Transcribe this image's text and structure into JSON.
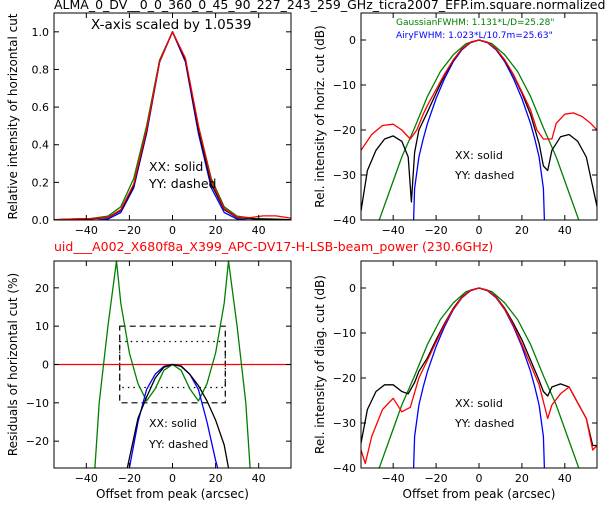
{
  "figure": {
    "top_title": "ALMA_0_DV__0_0_360_0_45_90_227_243_259_GHz_ticra2007_EFP.im.square.normalized",
    "mid_title": "uid___A002_X680f8a_X399_APC-DV17-H-LSB-beam_power (230.6GHz)",
    "x_scale_note": "X-axis scaled by 1.0539",
    "fwhm_gaussian": "GaussianFWHM: 1.131*L/D=25.28\"",
    "fwhm_airy": "AiryFWHM: 1.023*L/10.7m=25.63\"",
    "legend_xx": "XX: solid",
    "legend_yy": "YY: dashed"
  },
  "colors": {
    "black": "#000000",
    "red": "#ff0000",
    "blue": "#0000ff",
    "green": "#008000"
  },
  "chart_data": [
    {
      "id": "tl",
      "type": "line",
      "ylabel": "Relative intensity of horizontal cut",
      "xlabel": "",
      "xlim": [
        -55,
        55
      ],
      "ylim": [
        0,
        1.1
      ],
      "xticks": [
        -40,
        -20,
        0,
        20,
        40
      ],
      "yticks": [
        0.0,
        0.2,
        0.4,
        0.6,
        0.8,
        1.0
      ],
      "ytick_labels": [
        "0.0",
        "0.2",
        "0.4",
        "0.6",
        "0.8",
        "1.0"
      ],
      "series": [
        {
          "color": "green",
          "x": [
            -55,
            -45,
            -38,
            -30,
            -24,
            -18,
            -12,
            -6,
            0,
            6,
            12,
            18,
            24,
            30,
            38,
            45,
            55
          ],
          "y": [
            0.002,
            0.006,
            0.008,
            0.02,
            0.07,
            0.22,
            0.5,
            0.85,
            1.0,
            0.85,
            0.5,
            0.22,
            0.07,
            0.02,
            0.008,
            0.006,
            0.002
          ]
        },
        {
          "color": "blue",
          "x": [
            -35,
            -30,
            -24,
            -18,
            -12,
            -6,
            0,
            6,
            12,
            18,
            24,
            30,
            35
          ],
          "y": [
            0.0,
            0.005,
            0.04,
            0.17,
            0.46,
            0.84,
            1.0,
            0.84,
            0.46,
            0.17,
            0.04,
            0.005,
            0.0
          ]
        },
        {
          "color": "black",
          "x": [
            -55,
            -45,
            -38,
            -30,
            -24,
            -18,
            -12,
            -6,
            0,
            6,
            12,
            18,
            24,
            30,
            38,
            45,
            55
          ],
          "y": [
            0.001,
            0.005,
            0.006,
            0.012,
            0.05,
            0.18,
            0.47,
            0.84,
            1.0,
            0.85,
            0.48,
            0.19,
            0.055,
            0.012,
            0.006,
            0.005,
            0.001
          ]
        },
        {
          "color": "red",
          "x": [
            -55,
            -45,
            -38,
            -30,
            -24,
            -18,
            -12,
            -6,
            0,
            6,
            12,
            18,
            24,
            30,
            36,
            42,
            48,
            55
          ],
          "y": [
            0.001,
            0.006,
            0.008,
            0.014,
            0.055,
            0.19,
            0.48,
            0.84,
            1.0,
            0.86,
            0.5,
            0.21,
            0.06,
            0.015,
            0.012,
            0.022,
            0.022,
            0.01
          ]
        }
      ]
    },
    {
      "id": "tr",
      "type": "line",
      "ylabel": "Rel. intensity of horiz. cut (dB)",
      "xlabel": "",
      "xlim": [
        -55,
        55
      ],
      "ylim": [
        -40,
        6
      ],
      "xticks": [
        -40,
        -20,
        0,
        20,
        40
      ],
      "yticks": [
        -40,
        -30,
        -20,
        -10,
        0
      ],
      "ytick_labels": [
        "−40",
        "−30",
        "−20",
        "−10",
        "0"
      ],
      "series": [
        {
          "color": "green",
          "x": [
            -55,
            -48,
            -42,
            -36,
            -30,
            -24,
            -18,
            -12,
            -6,
            0,
            6,
            12,
            18,
            24,
            30,
            36,
            42,
            48,
            55
          ],
          "y": [
            -50,
            -42,
            -34,
            -26,
            -19.5,
            -12.5,
            -7,
            -3.3,
            -0.8,
            0,
            -0.8,
            -3.3,
            -7,
            -12.5,
            -19.5,
            -26,
            -34,
            -42,
            -50
          ]
        },
        {
          "color": "blue",
          "x": [
            -30.5,
            -30,
            -28,
            -26,
            -24,
            -20,
            -16,
            -12,
            -8,
            -4,
            0,
            4,
            8,
            12,
            16,
            20,
            24,
            26,
            28,
            30,
            30.5
          ],
          "y": [
            -40,
            -33,
            -26,
            -22,
            -18.5,
            -13,
            -8.5,
            -4.8,
            -2.2,
            -0.6,
            0,
            -0.6,
            -2.2,
            -4.8,
            -8.5,
            -13,
            -18.5,
            -22,
            -26,
            -33,
            -40
          ]
        },
        {
          "color": "black",
          "x": [
            -55,
            -52,
            -48,
            -44,
            -40,
            -36,
            -33,
            -31.5,
            -30,
            -28,
            -24,
            -20,
            -16,
            -12,
            -8,
            -4,
            0,
            4,
            8,
            12,
            16,
            20,
            24,
            28,
            30,
            32,
            34,
            38,
            42,
            46,
            50,
            55
          ],
          "y": [
            -38,
            -29,
            -24.5,
            -22,
            -21.3,
            -22.5,
            -26,
            -36,
            -25,
            -20,
            -16,
            -11.8,
            -7.8,
            -4.5,
            -2,
            -0.5,
            0,
            -0.5,
            -2,
            -4.5,
            -7.8,
            -11.8,
            -16.5,
            -23,
            -28,
            -29,
            -24.5,
            -21.5,
            -21,
            -22.5,
            -26,
            -37
          ]
        },
        {
          "color": "red",
          "x": [
            -55,
            -50,
            -45,
            -40,
            -36,
            -32,
            -29,
            -26,
            -24,
            -20,
            -16,
            -12,
            -8,
            -4,
            0,
            4,
            8,
            12,
            16,
            20,
            24,
            27,
            30,
            32,
            34,
            36,
            40,
            44,
            48,
            52,
            55
          ],
          "y": [
            -24.5,
            -21,
            -19,
            -18.7,
            -20,
            -22,
            -20,
            -16.5,
            -14.5,
            -11,
            -7.5,
            -4.4,
            -2,
            -0.5,
            0,
            -0.5,
            -2,
            -4.4,
            -7.6,
            -11.5,
            -15.5,
            -20,
            -22,
            -22,
            -22,
            -18.5,
            -16.5,
            -16.2,
            -17,
            -18.5,
            -20
          ]
        }
      ]
    },
    {
      "id": "bl",
      "type": "line",
      "ylabel": "Residuals of horizontal cut (%)",
      "xlabel": "Offset from peak (arcsec)",
      "xlim": [
        -55,
        55
      ],
      "ylim": [
        -27,
        27
      ],
      "xticks": [
        -40,
        -20,
        0,
        20,
        40
      ],
      "yticks": [
        -20,
        -10,
        0,
        10,
        20
      ],
      "ytick_labels": [
        "−20",
        "−10",
        "0",
        "10",
        "20"
      ],
      "series": [
        {
          "color": "red",
          "x": [
            -55,
            55
          ],
          "y": [
            0,
            0
          ]
        },
        {
          "color": "green",
          "x": [
            -36,
            -34,
            -30,
            -26,
            -24,
            -20,
            -16,
            -12,
            -8,
            -4,
            0,
            4,
            8,
            12,
            16,
            20,
            24,
            26,
            30,
            34,
            36
          ],
          "y": [
            -27,
            -10,
            10,
            27,
            16,
            3,
            -5,
            -9.5,
            -6.3,
            -1.5,
            0,
            -1.5,
            -6.3,
            -9.5,
            -5,
            3,
            16,
            27,
            10,
            -10,
            -27
          ]
        },
        {
          "color": "blue",
          "x": [
            -20,
            -16,
            -12,
            -8,
            -4,
            0,
            4,
            8,
            12,
            16,
            20,
            21
          ],
          "y": [
            -27,
            -15,
            -6.5,
            -2.5,
            -0.5,
            0,
            -0.5,
            -2.5,
            -6.5,
            -15,
            -25,
            -27
          ]
        },
        {
          "color": "black",
          "x": [
            -21,
            -16,
            -12,
            -8,
            -4,
            0,
            4,
            8,
            12,
            16,
            20,
            24,
            26
          ],
          "y": [
            -27,
            -14,
            -8.5,
            -3.5,
            -0.7,
            0,
            -0.4,
            -2.5,
            -5.5,
            -9.5,
            -14.5,
            -21,
            -27
          ]
        }
      ],
      "rects": [
        {
          "style": "dashed",
          "x": [
            -24.5,
            24.5
          ],
          "y": [
            -10,
            10
          ]
        },
        {
          "style": "dotted",
          "x": [
            -24.5,
            24.5
          ],
          "y": [
            -6,
            6
          ]
        }
      ]
    },
    {
      "id": "br",
      "type": "line",
      "ylabel": "Rel. intensity of diag. cut (dB)",
      "xlabel": "Offset from peak (arcsec)",
      "xlim": [
        -55,
        55
      ],
      "ylim": [
        -40,
        6
      ],
      "xticks": [
        -40,
        -20,
        0,
        20,
        40
      ],
      "yticks": [
        -40,
        -30,
        -20,
        -10,
        0
      ],
      "ytick_labels": [
        "−40",
        "−30",
        "−20",
        "−10",
        "0"
      ],
      "series": [
        {
          "color": "green",
          "x": [
            -55,
            -48,
            -42,
            -36,
            -30,
            -24,
            -18,
            -12,
            -6,
            0,
            6,
            12,
            18,
            24,
            30,
            36,
            42,
            48,
            55
          ],
          "y": [
            -50,
            -42,
            -34,
            -26,
            -19.5,
            -12.5,
            -7,
            -3.3,
            -0.8,
            0,
            -0.8,
            -3.3,
            -7,
            -12.5,
            -19.5,
            -26,
            -34,
            -42,
            -50
          ]
        },
        {
          "color": "blue",
          "x": [
            -30.5,
            -30,
            -28,
            -26,
            -24,
            -20,
            -16,
            -12,
            -8,
            -4,
            0,
            4,
            8,
            12,
            16,
            20,
            24,
            26,
            28,
            30,
            30.5
          ],
          "y": [
            -40,
            -33,
            -26,
            -22,
            -18.5,
            -13,
            -8.5,
            -4.8,
            -2.2,
            -0.6,
            0,
            -0.6,
            -2.2,
            -4.8,
            -8.5,
            -13,
            -18.5,
            -22,
            -26,
            -33,
            -40
          ]
        },
        {
          "color": "black",
          "x": [
            -55,
            -52,
            -48,
            -44,
            -40,
            -36,
            -33,
            -30,
            -28,
            -24,
            -20,
            -16,
            -12,
            -8,
            -4,
            0,
            4,
            8,
            12,
            16,
            20,
            24,
            28,
            30,
            32,
            34,
            38,
            42,
            46,
            50,
            53,
            55
          ],
          "y": [
            -34.5,
            -27,
            -23,
            -21.5,
            -21.5,
            -23,
            -23.5,
            -21,
            -18.5,
            -15.5,
            -11.5,
            -7.8,
            -4.5,
            -2,
            -0.5,
            0,
            -0.5,
            -2,
            -4.5,
            -7.8,
            -11.5,
            -16,
            -20.5,
            -23,
            -24,
            -22,
            -21.3,
            -22,
            -25.5,
            -29,
            -35,
            -35
          ]
        },
        {
          "color": "red",
          "x": [
            -55,
            -53,
            -50,
            -45,
            -40,
            -36,
            -32,
            -28,
            -24,
            -20,
            -16,
            -12,
            -8,
            -4,
            0,
            4,
            8,
            12,
            16,
            20,
            24,
            28,
            32,
            34,
            38,
            42,
            46,
            50,
            53,
            55
          ],
          "y": [
            -36,
            -39,
            -33,
            -27,
            -24.5,
            -27.5,
            -26.5,
            -20,
            -16,
            -12,
            -8,
            -4.7,
            -2.1,
            -0.5,
            0,
            -0.5,
            -2.1,
            -4.7,
            -8.2,
            -12.5,
            -17,
            -21.5,
            -29,
            -26,
            -23.5,
            -22,
            -25.5,
            -29,
            -36,
            -35
          ]
        }
      ]
    }
  ]
}
